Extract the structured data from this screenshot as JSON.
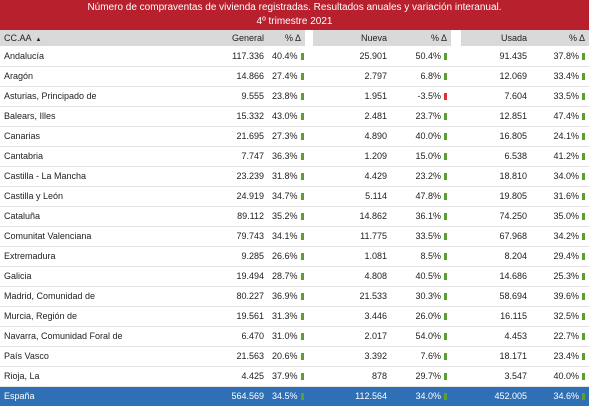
{
  "title": [
    "Número de compraventas de vivienda registradas. Resultados anuales y variación interanual.",
    "4º trimestre 2021"
  ],
  "table": {
    "header": [
      "CC.AA",
      "General",
      "% Δ",
      "Nueva",
      "% Δ",
      "Usada",
      "% Δ"
    ],
    "rows": [
      [
        "Andalucía",
        "117.336",
        "40.4%",
        "25.901",
        "50.4%",
        "91.435",
        "37.8%"
      ],
      [
        "Aragón",
        "14.866",
        "27.4%",
        "2.797",
        "6.8%",
        "12.069",
        "33.4%"
      ],
      [
        "Asturias, Principado de",
        "9.555",
        "23.8%",
        "1.951",
        "-3.5%",
        "7.604",
        "33.5%"
      ],
      [
        "Balears, Illes",
        "15.332",
        "43.0%",
        "2.481",
        "23.7%",
        "12.851",
        "47.4%"
      ],
      [
        "Canarias",
        "21.695",
        "27.3%",
        "4.890",
        "40.0%",
        "16.805",
        "24.1%"
      ],
      [
        "Cantabria",
        "7.747",
        "36.3%",
        "1.209",
        "15.0%",
        "6.538",
        "41.2%"
      ],
      [
        "Castilla - La Mancha",
        "23.239",
        "31.8%",
        "4.429",
        "23.2%",
        "18.810",
        "34.0%"
      ],
      [
        "Castilla y León",
        "24.919",
        "34.7%",
        "5.114",
        "47.8%",
        "19.805",
        "31.6%"
      ],
      [
        "Cataluña",
        "89.112",
        "35.2%",
        "14.862",
        "36.1%",
        "74.250",
        "35.0%"
      ],
      [
        "Comunitat Valenciana",
        "79.743",
        "34.1%",
        "11.775",
        "33.5%",
        "67.968",
        "34.2%"
      ],
      [
        "Extremadura",
        "9.285",
        "26.6%",
        "1.081",
        "8.5%",
        "8.204",
        "29.4%"
      ],
      [
        "Galicia",
        "19.494",
        "28.7%",
        "4.808",
        "40.5%",
        "14.686",
        "25.3%"
      ],
      [
        "Madrid, Comunidad de",
        "80.227",
        "36.9%",
        "21.533",
        "30.3%",
        "58.694",
        "39.6%"
      ],
      [
        "Murcia, Región de",
        "19.561",
        "31.3%",
        "3.446",
        "26.0%",
        "16.115",
        "32.5%"
      ],
      [
        "Navarra, Comunidad Foral de",
        "6.470",
        "31.0%",
        "2.017",
        "54.0%",
        "4.453",
        "22.7%"
      ],
      [
        "País Vasco",
        "21.563",
        "20.6%",
        "3.392",
        "7.6%",
        "18.171",
        "23.4%"
      ],
      [
        "Rioja, La",
        "4.425",
        "37.9%",
        "878",
        "29.7%",
        "3.547",
        "40.0%"
      ]
    ],
    "total": [
      "España",
      "564.569",
      "34.5%",
      "112.564",
      "34.0%",
      "452.005",
      "34.6%"
    ]
  }
}
